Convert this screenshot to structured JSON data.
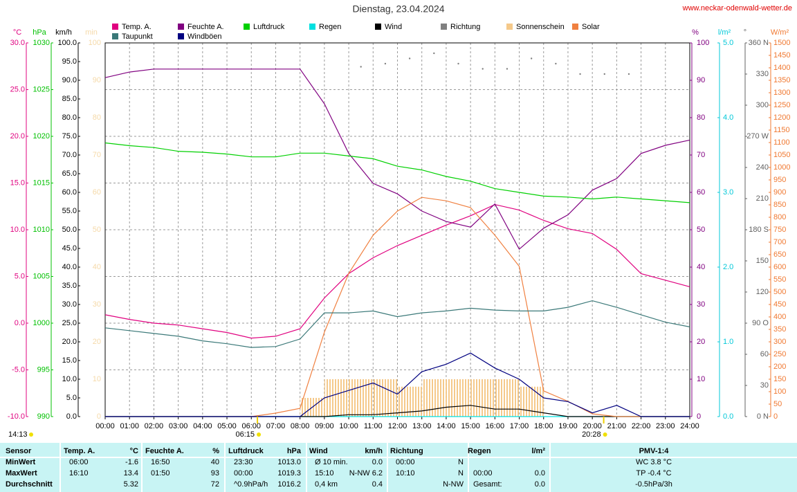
{
  "chart_data": {
    "type": "line",
    "title": "Dienstag, 23.04.2024",
    "source": "www.neckar-odenwald-wetter.de",
    "categories": [
      "00:00",
      "01:00",
      "02:00",
      "03:00",
      "04:00",
      "05:00",
      "06:00",
      "07:00",
      "08:00",
      "09:00",
      "10:00",
      "11:00",
      "12:00",
      "13:00",
      "14:00",
      "15:00",
      "16:00",
      "17:00",
      "18:00",
      "19:00",
      "20:00",
      "21:00",
      "22:00",
      "23:00",
      "24:00"
    ],
    "grid": true,
    "annotations": {
      "sunrise": "06:15",
      "sunset": "20:28",
      "updated": "14:13"
    },
    "axes": {
      "temp": {
        "label": "°C",
        "side": "left",
        "color": "#e0007f",
        "lim": [
          -10,
          30
        ],
        "ticks": [
          {
            "value": 30,
            "label": "30.0"
          },
          {
            "value": 25,
            "label": "25.0"
          },
          {
            "value": 20,
            "label": "20.0"
          },
          {
            "value": 15,
            "label": "15.0"
          },
          {
            "value": 10,
            "label": "10.0"
          },
          {
            "value": 5,
            "label": "5.0"
          },
          {
            "value": 0,
            "label": "0.0"
          },
          {
            "value": -5,
            "label": "-5.0"
          },
          {
            "value": -10,
            "label": "-10.0"
          }
        ]
      },
      "hpa": {
        "label": "hPa",
        "side": "left",
        "color": "#00c000",
        "lim": [
          990,
          1030
        ],
        "ticks": [
          1030,
          1025,
          1020,
          1015,
          1010,
          1005,
          1000,
          995,
          990
        ]
      },
      "kmh": {
        "label": "km/h",
        "side": "left",
        "color": "#000000",
        "lim": [
          0,
          100
        ],
        "ticks": [
          {
            "value": 100,
            "label": "100.0"
          },
          {
            "value": 95,
            "label": "95.0"
          },
          {
            "value": 90,
            "label": "90.0"
          },
          {
            "value": 85,
            "label": "85.0"
          },
          {
            "value": 80,
            "label": "80.0"
          },
          {
            "value": 75,
            "label": "75.0"
          },
          {
            "value": 70,
            "label": "70.0"
          },
          {
            "value": 65,
            "label": "65.0"
          },
          {
            "value": 60,
            "label": "60.0"
          },
          {
            "value": 55,
            "label": "55.0"
          },
          {
            "value": 50,
            "label": "50.0"
          },
          {
            "value": 45,
            "label": "45.0"
          },
          {
            "value": 40,
            "label": "40.0"
          },
          {
            "value": 35,
            "label": "35.0"
          },
          {
            "value": 30,
            "label": "30.0"
          },
          {
            "value": 25,
            "label": "25.0"
          },
          {
            "value": 20,
            "label": "20.0"
          },
          {
            "value": 15,
            "label": "15.0"
          },
          {
            "value": 10,
            "label": "10.0"
          },
          {
            "value": 5,
            "label": "5.0"
          },
          {
            "value": 0,
            "label": "0.0"
          }
        ]
      },
      "min": {
        "label": "min",
        "side": "left",
        "color": "#f5d9a8",
        "lim": [
          0,
          100
        ],
        "ticks": [
          100,
          90,
          80,
          70,
          60,
          50,
          40,
          30,
          20,
          10,
          0
        ]
      },
      "pct": {
        "label": "%",
        "side": "right",
        "color": "#800080",
        "lim": [
          0,
          100
        ],
        "ticks": [
          100,
          90,
          80,
          70,
          60,
          50,
          40,
          30,
          20,
          10,
          0
        ]
      },
      "rain": {
        "label": "l/m²",
        "side": "right",
        "color": "#00c8d8",
        "lim": [
          0,
          5
        ],
        "ticks": [
          {
            "value": 5,
            "label": "5.0"
          },
          {
            "value": 4,
            "label": "4.0"
          },
          {
            "value": 3,
            "label": "3.0"
          },
          {
            "value": 2,
            "label": "2.0"
          },
          {
            "value": 1,
            "label": "1.0"
          },
          {
            "value": 0,
            "label": "0.0"
          }
        ]
      },
      "dir": {
        "label": "°",
        "side": "right",
        "color": "#606060",
        "lim": [
          0,
          360
        ],
        "ticks": [
          {
            "value": 360,
            "label": "360 N"
          },
          330,
          300,
          {
            "value": 270,
            "label": "270 W"
          },
          240,
          210,
          {
            "value": 180,
            "label": "180 S"
          },
          150,
          120,
          {
            "value": 90,
            "label": "90 O"
          },
          60,
          30,
          {
            "value": 0,
            "label": "0 N"
          }
        ]
      },
      "solar": {
        "label": "W/m²",
        "side": "right",
        "color": "#f07830",
        "lim": [
          0,
          1500
        ],
        "ticks": [
          1500,
          1450,
          1400,
          1350,
          1300,
          1250,
          1200,
          1150,
          1100,
          1050,
          1000,
          950,
          900,
          850,
          800,
          750,
          700,
          650,
          600,
          550,
          500,
          450,
          400,
          350,
          300,
          250,
          200,
          150,
          100,
          50,
          0
        ]
      }
    },
    "series": [
      {
        "name": "Temp. A.",
        "color": "#e0007f",
        "axis": "temp",
        "style": "line",
        "values": [
          0.9,
          0.4,
          0.0,
          -0.2,
          -0.6,
          -1.0,
          -1.6,
          -1.4,
          -0.6,
          2.7,
          5.3,
          7.0,
          8.3,
          9.4,
          10.5,
          11.5,
          12.7,
          12.1,
          11.0,
          10.1,
          9.6,
          7.9,
          5.3,
          4.6,
          3.9
        ]
      },
      {
        "name": "Feuchte A.",
        "color": "#800080",
        "axis": "pct",
        "style": "line",
        "values": [
          90.7,
          92.2,
          93,
          93,
          93,
          93,
          93,
          93,
          93,
          83.7,
          70.4,
          62.4,
          59.6,
          55,
          52.2,
          50.7,
          56.9,
          44.8,
          50.4,
          54,
          60.6,
          63.7,
          70.4,
          72.6,
          74
        ]
      },
      {
        "name": "Luftdruck",
        "color": "#00d000",
        "axis": "hpa",
        "style": "line",
        "values": [
          1019.3,
          1019.0,
          1018.8,
          1018.4,
          1018.3,
          1018.1,
          1017.8,
          1017.8,
          1018.2,
          1018.2,
          1017.9,
          1017.6,
          1016.8,
          1016.4,
          1015.7,
          1015.2,
          1014.4,
          1014.0,
          1013.6,
          1013.5,
          1013.3,
          1013.5,
          1013.3,
          1013.1,
          1012.9
        ]
      },
      {
        "name": "Regen",
        "color": "#00e0e0",
        "axis": "rain",
        "style": "line",
        "values": [
          0,
          0,
          0,
          0,
          0,
          0,
          0,
          0,
          0,
          0,
          0,
          0,
          0,
          0,
          0,
          0,
          0,
          0,
          0,
          0,
          0,
          0,
          0,
          0,
          0
        ]
      },
      {
        "name": "Wind",
        "color": "#000000",
        "axis": "kmh",
        "style": "line",
        "values": [
          0,
          0,
          0,
          0,
          0,
          0,
          0,
          0,
          0,
          0,
          0.5,
          0.5,
          1,
          1.5,
          2.5,
          3,
          2,
          2,
          1,
          0,
          0,
          0,
          0,
          0,
          0
        ]
      },
      {
        "name": "Richtung",
        "color": "#808080",
        "axis": "dir",
        "style": "dots",
        "values": [
          null,
          null,
          null,
          null,
          null,
          null,
          null,
          null,
          null,
          null,
          337,
          340,
          345,
          350,
          340,
          335,
          335,
          345,
          340,
          330,
          330,
          330,
          null,
          null,
          null
        ]
      },
      {
        "name": "Sonnenschein",
        "color": "#f5c98a",
        "axis": "min",
        "style": "bars",
        "values": [
          0,
          0,
          0,
          0,
          0,
          0,
          0,
          0,
          5,
          10,
          10,
          10,
          8,
          10,
          10,
          10,
          10,
          8,
          0,
          0,
          0,
          0,
          0,
          0,
          0
        ]
      },
      {
        "name": "Solar",
        "color": "#f08040",
        "axis": "solar",
        "style": "line",
        "values": [
          0,
          0,
          0,
          0,
          0,
          0,
          0,
          14,
          33,
          339,
          575,
          728,
          825,
          880,
          866,
          839,
          728,
          603,
          103,
          61,
          11,
          0,
          0,
          0,
          0
        ]
      },
      {
        "name": "Taupunkt",
        "color": "#3a7878",
        "axis": "temp",
        "style": "line",
        "values": [
          -0.5,
          -0.8,
          -1.1,
          -1.4,
          -1.9,
          -2.2,
          -2.6,
          -2.5,
          -1.7,
          1.1,
          1.1,
          1.3,
          0.7,
          1.1,
          1.3,
          1.6,
          1.4,
          1.3,
          1.3,
          1.7,
          2.4,
          1.7,
          0.9,
          0.1,
          -0.4
        ]
      },
      {
        "name": "Windböen",
        "color": "#000080",
        "axis": "kmh",
        "style": "line",
        "values": [
          0,
          0,
          0,
          0,
          0,
          0,
          0,
          0,
          0,
          5,
          7,
          9,
          6,
          12,
          14,
          17,
          13,
          10,
          5,
          4,
          1,
          3,
          0,
          0,
          0
        ]
      }
    ]
  },
  "table": {
    "rows": [
      [
        "Sensor",
        "Temp. A.",
        "°C",
        "Feuchte A.",
        "%",
        "Luftdruck",
        "hPa",
        "Wind",
        "km/h",
        "Richtung",
        null,
        "Regen",
        "l/m²",
        "PMV-1:4"
      ],
      [
        "MinWert",
        "06:00",
        "-1.6",
        "16:50",
        "40",
        "23:30",
        "1013.0",
        "Ø 10 min.",
        "0.0",
        "00:00",
        "N",
        null,
        null,
        "WC 3.8 °C"
      ],
      [
        "MaxWert",
        "16:10",
        "13.4",
        "01:50",
        "93",
        "00:00",
        "1019.3",
        "15:10",
        "N-NW 6.2",
        "10:10",
        "N",
        "00:00",
        "0.0",
        "TP -0.4 °C"
      ],
      [
        "Durchschnitt",
        null,
        "5.32",
        null,
        "72",
        "^0.9hPa/h",
        "1016.2",
        "0,4 km",
        "0.4",
        null,
        "N-NW",
        "Gesamt:",
        "0.0",
        "-0.5hPa/3h"
      ]
    ]
  }
}
